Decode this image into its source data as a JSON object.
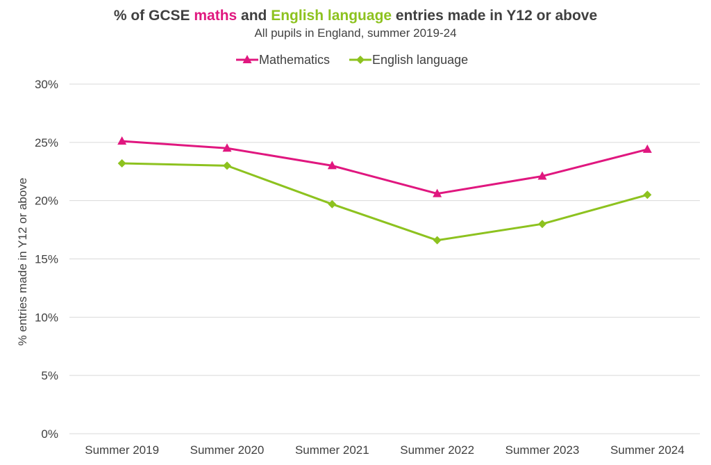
{
  "title": {
    "part1": "% of GCSE ",
    "part2": "maths",
    "part3": " and ",
    "part4": "English language",
    "part5": " entries made in Y12 or above"
  },
  "subtitle": "All pupils in England, summer 2019-24",
  "colors": {
    "mathematics": "#e0177f",
    "english": "#8dc21f",
    "text": "#404040",
    "grid": "#d9d9d9"
  },
  "chart_data": {
    "type": "line",
    "title": "% of GCSE maths and English language entries made in Y12 or above",
    "subtitle": "All pupils in England, summer 2019-24",
    "categories": [
      "Summer 2019",
      "Summer 2020",
      "Summer 2021",
      "Summer 2022",
      "Summer 2023",
      "Summer 2024"
    ],
    "series": [
      {
        "name": "Mathematics",
        "marker": "triangle",
        "color": "#e0177f",
        "values": [
          25.1,
          24.5,
          23.0,
          20.6,
          22.1,
          24.4
        ]
      },
      {
        "name": "English language",
        "marker": "diamond",
        "color": "#8dc21f",
        "values": [
          23.2,
          23.0,
          19.7,
          16.6,
          18.0,
          20.5
        ]
      }
    ],
    "xlabel": "",
    "ylabel": "% entries made in Y12 or above",
    "ylim": [
      0,
      30
    ],
    "yticks": [
      0,
      5,
      10,
      15,
      20,
      25,
      30
    ],
    "ytick_labels": [
      "0%",
      "5%",
      "10%",
      "15%",
      "20%",
      "25%",
      "30%"
    ],
    "grid": true,
    "legend_position": "top-center"
  }
}
